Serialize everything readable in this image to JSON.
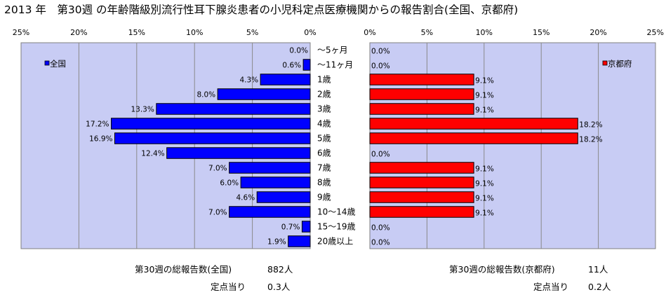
{
  "title": "2013 年　第30週 の年齢階級別流行性耳下腺炎患者の小児科定点医療機関からの報告割合(全国、京都府)",
  "chart_data": [
    {
      "type": "bar",
      "orientation": "horizontal",
      "direction": "leftward",
      "series": [
        {
          "name": "全国",
          "values": [
            0.0,
            0.6,
            4.3,
            8.0,
            13.3,
            17.2,
            16.9,
            12.4,
            7.0,
            6.0,
            4.6,
            7.0,
            0.7,
            1.9
          ]
        }
      ],
      "value_labels": [
        "0.0%",
        "0.6%",
        "4.3%",
        "8.0%",
        "13.3%",
        "17.2%",
        "16.9%",
        "12.4%",
        "7.0%",
        "6.0%",
        "4.6%",
        "7.0%",
        "0.7%",
        "1.9%"
      ],
      "ticks": [
        "25%",
        "20%",
        "15%",
        "10%",
        "5%",
        "0%"
      ],
      "xlim": [
        0,
        25
      ],
      "legend": "top-left",
      "grid": true,
      "bar_color": "#0000ff",
      "plot_bg": "#c8ccf4"
    },
    {
      "type": "bar",
      "orientation": "horizontal",
      "direction": "rightward",
      "series": [
        {
          "name": "京都府",
          "values": [
            0.0,
            0.0,
            9.1,
            9.1,
            9.1,
            18.2,
            18.2,
            0.0,
            9.1,
            9.1,
            9.1,
            9.1,
            0.0,
            0.0
          ]
        }
      ],
      "value_labels": [
        "0.0%",
        "0.0%",
        "9.1%",
        "9.1%",
        "9.1%",
        "18.2%",
        "18.2%",
        "0.0%",
        "9.1%",
        "9.1%",
        "9.1%",
        "9.1%",
        "0.0%",
        "0.0%"
      ],
      "ticks": [
        "0%",
        "5%",
        "10%",
        "15%",
        "20%",
        "25%"
      ],
      "xlim": [
        0,
        25
      ],
      "legend": "top-right",
      "grid": true,
      "bar_color": "#ff0000",
      "plot_bg": "#c8ccf4"
    }
  ],
  "categories": [
    "～5ヶ月",
    "～11ヶ月",
    "1歳",
    "2歳",
    "3歳",
    "4歳",
    "5歳",
    "6歳",
    "7歳",
    "8歳",
    "9歳",
    "10～14歳",
    "15～19歳",
    "20歳以上"
  ],
  "summary": {
    "national_total_label": "第30週の総報告数(全国)",
    "national_total_value": "882人",
    "national_per_label": "定点当り",
    "national_per_value": "0.3人",
    "kyoto_total_label": "第30週の総報告数(京都府)",
    "kyoto_total_value": "11人",
    "kyoto_per_label": "定点当り",
    "kyoto_per_value": "0.2人"
  }
}
